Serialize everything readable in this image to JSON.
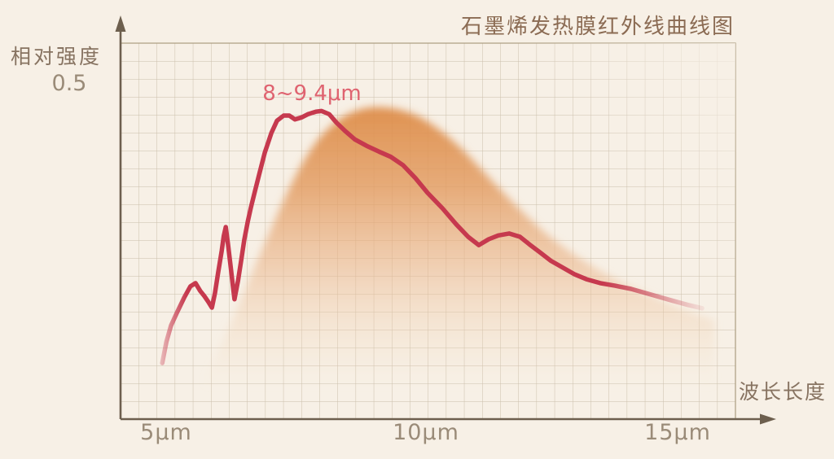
{
  "title": "石墨烯发热膜红外线曲线图",
  "axes": {
    "y_label": "相对强度",
    "y_tick": "0.5",
    "x_label": "波长长度",
    "x_ticks": [
      "5μm",
      "10μm",
      "15μm"
    ]
  },
  "annotation": {
    "peak_range": "8~9.4μm"
  },
  "colors": {
    "background": "#f7f0e6",
    "curve": "#c6394e",
    "envelope": "#dd8943",
    "annotation_text": "#df6370",
    "title_text": "#8b6b53",
    "axis": "#6d5f4e",
    "tick_text": "#9a8b78",
    "grid": "#bfb19c"
  },
  "chart_data": {
    "type": "area",
    "title": "石墨烯发热膜红外线曲线图",
    "xlabel": "波长长度",
    "ylabel": "相对强度",
    "x_unit": "μm",
    "x_ticks": [
      5,
      10,
      15
    ],
    "y_ticks": [
      0.5
    ],
    "xlim": [
      4.1,
      16.2
    ],
    "ylim": [
      0,
      0.58
    ],
    "grid": true,
    "legend": false,
    "annotation": {
      "text": "8~9.4μm",
      "x_um": 8.0,
      "y": 0.52
    },
    "curve_points": [
      [
        4.94,
        0.087
      ],
      [
        5.02,
        0.12
      ],
      [
        5.11,
        0.145
      ],
      [
        5.22,
        0.164
      ],
      [
        5.37,
        0.189
      ],
      [
        5.49,
        0.206
      ],
      [
        5.59,
        0.211
      ],
      [
        5.68,
        0.199
      ],
      [
        5.76,
        0.191
      ],
      [
        5.84,
        0.182
      ],
      [
        5.91,
        0.173
      ],
      [
        5.97,
        0.196
      ],
      [
        6.03,
        0.227
      ],
      [
        6.1,
        0.261
      ],
      [
        6.14,
        0.284
      ],
      [
        6.18,
        0.298
      ],
      [
        6.22,
        0.274
      ],
      [
        6.27,
        0.24
      ],
      [
        6.32,
        0.206
      ],
      [
        6.35,
        0.186
      ],
      [
        6.42,
        0.215
      ],
      [
        6.48,
        0.246
      ],
      [
        6.54,
        0.278
      ],
      [
        6.61,
        0.307
      ],
      [
        6.67,
        0.328
      ],
      [
        6.75,
        0.354
      ],
      [
        6.83,
        0.379
      ],
      [
        6.94,
        0.413
      ],
      [
        7.07,
        0.444
      ],
      [
        7.18,
        0.463
      ],
      [
        7.31,
        0.471
      ],
      [
        7.42,
        0.471
      ],
      [
        7.53,
        0.465
      ],
      [
        7.66,
        0.468
      ],
      [
        7.78,
        0.473
      ],
      [
        7.94,
        0.477
      ],
      [
        8.05,
        0.478
      ],
      [
        8.2,
        0.473
      ],
      [
        8.34,
        0.46
      ],
      [
        8.51,
        0.447
      ],
      [
        8.7,
        0.434
      ],
      [
        8.93,
        0.424
      ],
      [
        9.17,
        0.415
      ],
      [
        9.4,
        0.407
      ],
      [
        9.64,
        0.394
      ],
      [
        9.88,
        0.374
      ],
      [
        10.12,
        0.351
      ],
      [
        10.41,
        0.327
      ],
      [
        10.68,
        0.302
      ],
      [
        10.91,
        0.283
      ],
      [
        11.12,
        0.27
      ],
      [
        11.31,
        0.279
      ],
      [
        11.5,
        0.285
      ],
      [
        11.71,
        0.288
      ],
      [
        11.92,
        0.283
      ],
      [
        12.11,
        0.271
      ],
      [
        12.31,
        0.259
      ],
      [
        12.52,
        0.246
      ],
      [
        12.74,
        0.236
      ],
      [
        12.98,
        0.225
      ],
      [
        13.22,
        0.217
      ],
      [
        13.49,
        0.211
      ],
      [
        13.78,
        0.207
      ],
      [
        14.09,
        0.202
      ],
      [
        14.49,
        0.193
      ],
      [
        14.89,
        0.184
      ],
      [
        15.21,
        0.177
      ],
      [
        15.48,
        0.172
      ]
    ],
    "envelope_points": [
      [
        5.75,
        0.057
      ],
      [
        6.03,
        0.105
      ],
      [
        6.35,
        0.16
      ],
      [
        6.67,
        0.223
      ],
      [
        6.99,
        0.282
      ],
      [
        7.31,
        0.34
      ],
      [
        7.62,
        0.391
      ],
      [
        8.0,
        0.438
      ],
      [
        8.42,
        0.468
      ],
      [
        8.82,
        0.482
      ],
      [
        9.17,
        0.485
      ],
      [
        9.56,
        0.481
      ],
      [
        9.96,
        0.47
      ],
      [
        10.36,
        0.449
      ],
      [
        10.76,
        0.422
      ],
      [
        11.15,
        0.389
      ],
      [
        11.55,
        0.355
      ],
      [
        12.03,
        0.316
      ],
      [
        12.58,
        0.277
      ],
      [
        13.22,
        0.242
      ],
      [
        13.86,
        0.213
      ],
      [
        14.49,
        0.191
      ],
      [
        15.13,
        0.169
      ],
      [
        15.72,
        0.153
      ]
    ]
  }
}
